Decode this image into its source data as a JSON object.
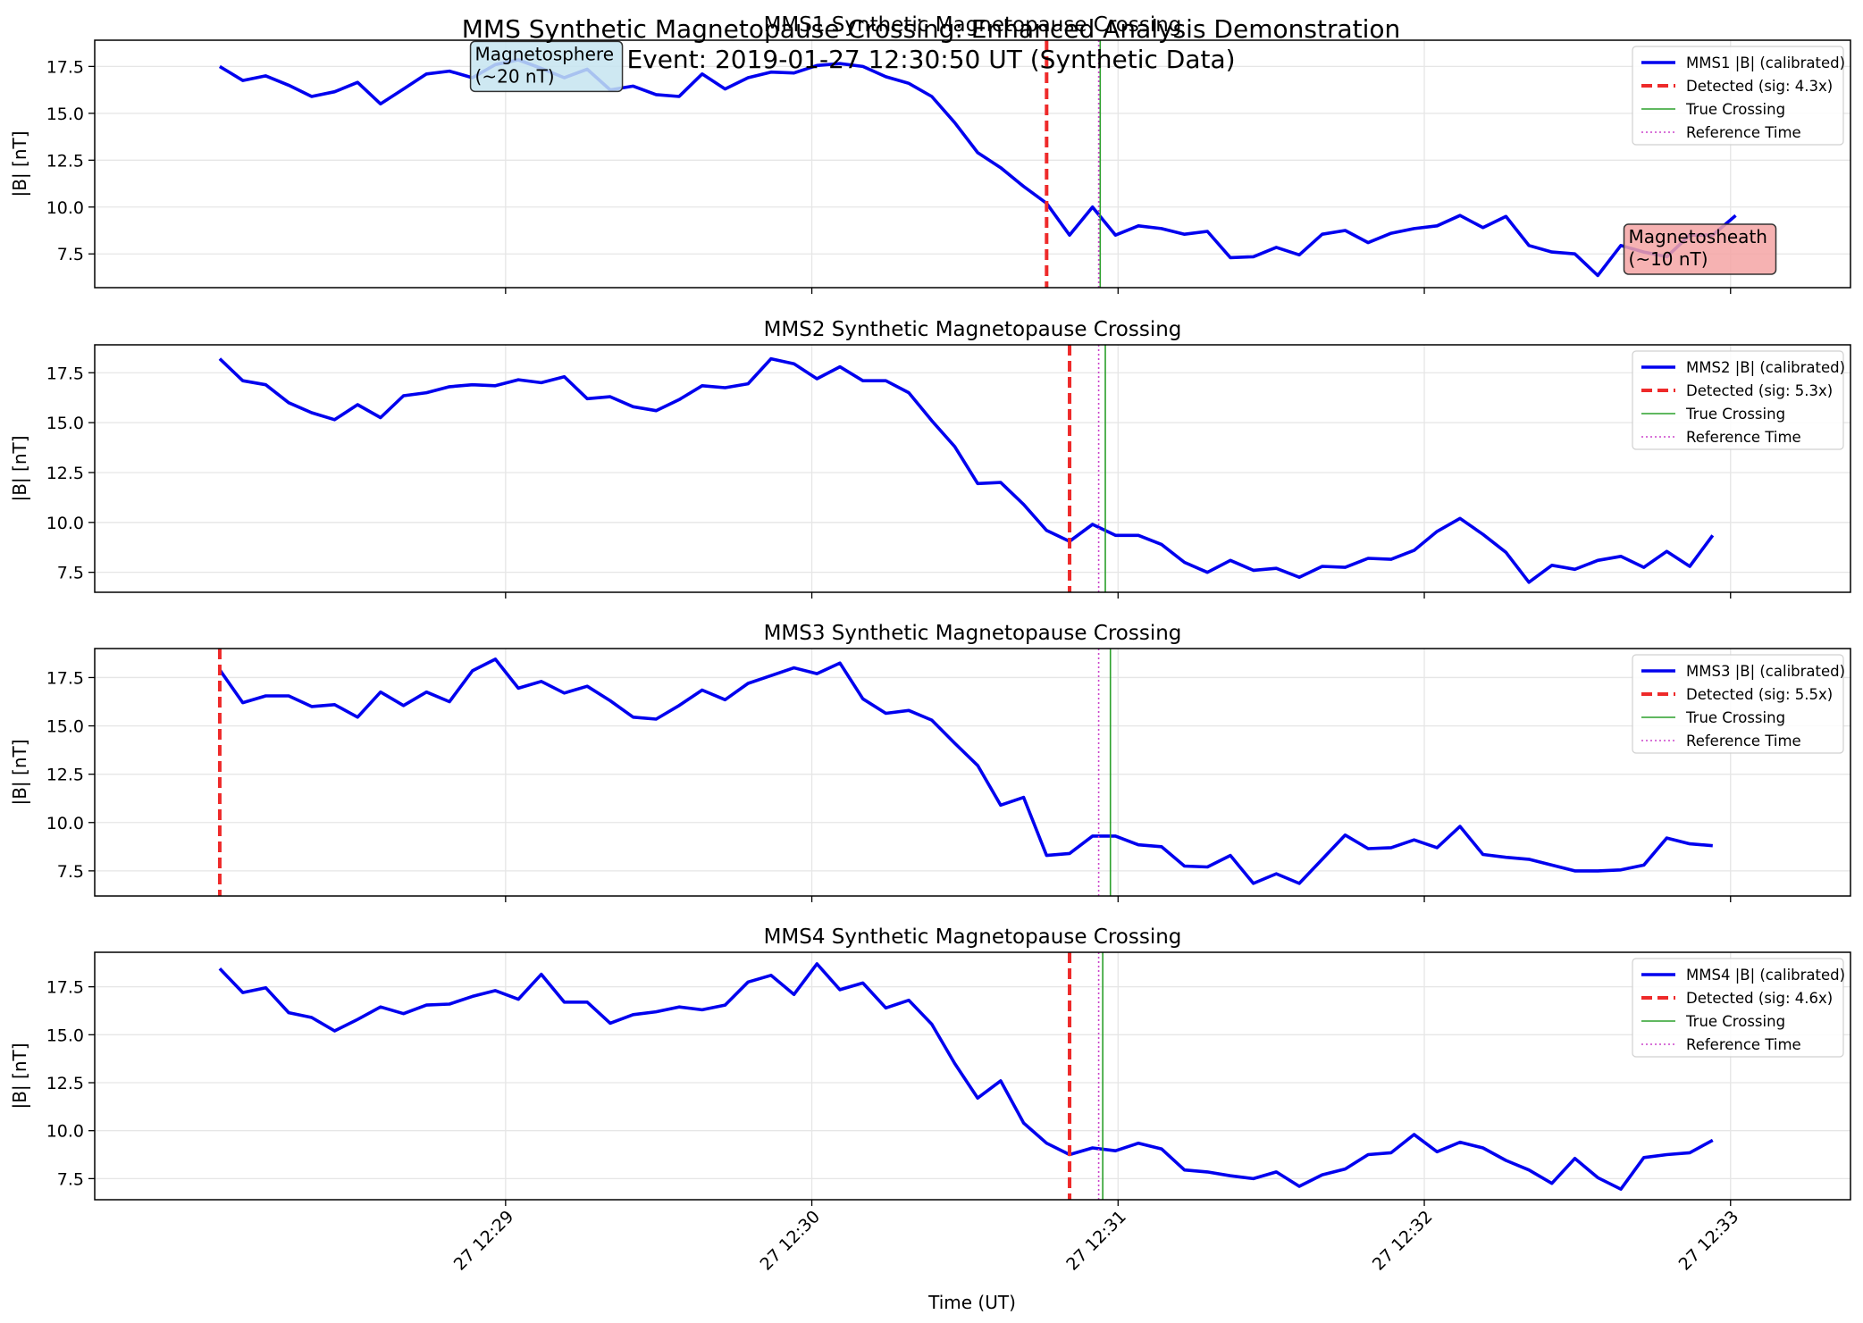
{
  "figure": {
    "suptitle_line1": "MMS Synthetic Magnetopause Crossing: Enhanced Analysis Demonstration",
    "suptitle_line2": "Event: 2019-01-27 12:30:50 UT (Synthetic Data)",
    "xlabel": "Time (UT)",
    "ylabel": "|B| [nT]",
    "colors": {
      "trace": "#0000ee",
      "detected": "#ee2a2a",
      "truth": "#2ca02c",
      "reference": "#cc44cc",
      "grid": "#e6e6e6"
    }
  },
  "chart_data": [
    {
      "type": "line",
      "title": "MMS1 Synthetic Magnetopause Crossing",
      "ylabel": "|B| [nT]",
      "x_unit": "seconds after 12:28:00 UT",
      "x_ticks": [
        60,
        120,
        180,
        240,
        300
      ],
      "x_tick_labels": [
        "27 12:29",
        "27 12:30",
        "27 12:31",
        "27 12:32",
        "27 12:33"
      ],
      "ylim": [
        5.7,
        18.9
      ],
      "y_ticks": [
        7.5,
        10.0,
        12.5,
        15.0,
        17.5
      ],
      "y_tick_labels": [
        "7.5",
        "10.0",
        "12.5",
        "15.0",
        "17.5"
      ],
      "grid": true,
      "legend_position": "top-right",
      "series": [
        {
          "name": "MMS1 |B| (calibrated)",
          "x_start": 4,
          "x_step": 4.5,
          "values": [
            17.5,
            16.75,
            17.0,
            16.5,
            15.9,
            16.15,
            16.65,
            15.5,
            16.3,
            17.1,
            17.25,
            16.9,
            17.6,
            17.85,
            17.4,
            16.9,
            17.35,
            16.25,
            16.45,
            16.0,
            15.9,
            17.1,
            16.3,
            16.9,
            17.2,
            17.15,
            17.55,
            17.65,
            17.5,
            16.95,
            16.6,
            15.9,
            14.5,
            12.9,
            12.1,
            11.1,
            10.2,
            8.5,
            10.0,
            8.5,
            9.0,
            8.85,
            8.55,
            8.7,
            7.3,
            7.35,
            7.85,
            7.45,
            8.55,
            8.75,
            8.1,
            8.6,
            8.85,
            9.0,
            9.55,
            8.9,
            9.5,
            7.95,
            7.6,
            7.5,
            6.35,
            7.95,
            7.6,
            7.35,
            8.5,
            8.5,
            9.55
          ]
        }
      ],
      "markers": [
        {
          "kind": "detected",
          "label": "Detected (sig: 4.3x)",
          "x": 166
        },
        {
          "kind": "truth",
          "label": "True Crossing",
          "x": 176.5
        },
        {
          "kind": "reference",
          "label": "Reference Time",
          "x": 176.2
        }
      ],
      "annotations": [
        {
          "text_line1": "Magnetosphere",
          "text_line2": "(~20 nT)",
          "x": 54,
          "y": 18.55,
          "face": "#c5e4f0"
        },
        {
          "text_line1": "Magnetosheath",
          "text_line2": "(~10 nT)",
          "x": 280,
          "y": 8.8,
          "face": "#f4a4a4"
        }
      ]
    },
    {
      "type": "line",
      "title": "MMS2 Synthetic Magnetopause Crossing",
      "ylabel": "|B| [nT]",
      "x_unit": "seconds after 12:28:00 UT",
      "x_ticks": [
        60,
        120,
        180,
        240,
        300
      ],
      "x_tick_labels": [
        "27 12:29",
        "27 12:30",
        "27 12:31",
        "27 12:32",
        "27 12:33"
      ],
      "ylim": [
        6.5,
        18.9
      ],
      "y_ticks": [
        7.5,
        10.0,
        12.5,
        15.0,
        17.5
      ],
      "y_tick_labels": [
        "7.5",
        "10.0",
        "12.5",
        "15.0",
        "17.5"
      ],
      "grid": true,
      "legend_position": "top-right",
      "series": [
        {
          "name": "MMS2 |B| (calibrated)",
          "x_start": 4,
          "x_step": 4.5,
          "values": [
            18.2,
            17.1,
            16.9,
            16.0,
            15.5,
            15.15,
            15.9,
            15.25,
            16.35,
            16.5,
            16.8,
            16.9,
            16.85,
            17.15,
            17.0,
            17.3,
            16.2,
            16.3,
            15.8,
            15.6,
            16.15,
            16.85,
            16.75,
            16.95,
            18.2,
            17.95,
            17.2,
            17.8,
            17.1,
            17.1,
            16.5,
            15.1,
            13.8,
            11.95,
            12.0,
            10.9,
            9.6,
            9.05,
            9.9,
            9.35,
            9.35,
            8.9,
            8.0,
            7.5,
            8.1,
            7.6,
            7.7,
            7.25,
            7.8,
            7.75,
            8.2,
            8.15,
            8.6,
            9.55,
            10.2,
            9.4,
            8.5,
            7.0,
            7.85,
            7.65,
            8.1,
            8.3,
            7.75,
            8.55,
            7.8,
            9.35
          ]
        }
      ],
      "markers": [
        {
          "kind": "detected",
          "label": "Detected (sig: 5.3x)",
          "x": 170.5
        },
        {
          "kind": "truth",
          "label": "True Crossing",
          "x": 177.5
        },
        {
          "kind": "reference",
          "label": "Reference Time",
          "x": 176.2
        }
      ],
      "annotations": []
    },
    {
      "type": "line",
      "title": "MMS3 Synthetic Magnetopause Crossing",
      "ylabel": "|B| [nT]",
      "x_unit": "seconds after 12:28:00 UT",
      "x_ticks": [
        60,
        120,
        180,
        240,
        300
      ],
      "x_tick_labels": [
        "27 12:29",
        "27 12:30",
        "27 12:31",
        "27 12:32",
        "27 12:33"
      ],
      "ylim": [
        6.2,
        19.0
      ],
      "y_ticks": [
        7.5,
        10.0,
        12.5,
        15.0,
        17.5
      ],
      "y_tick_labels": [
        "7.5",
        "10.0",
        "12.5",
        "15.0",
        "17.5"
      ],
      "grid": true,
      "legend_position": "top-right",
      "series": [
        {
          "name": "MMS3 |B| (calibrated)",
          "x_start": 4,
          "x_step": 4.5,
          "values": [
            17.9,
            16.2,
            16.55,
            16.55,
            16.0,
            16.1,
            15.45,
            16.75,
            16.05,
            16.75,
            16.25,
            17.85,
            18.45,
            16.95,
            17.3,
            16.7,
            17.05,
            16.3,
            15.45,
            15.35,
            16.05,
            16.85,
            16.35,
            17.2,
            17.6,
            18.0,
            17.7,
            18.25,
            16.4,
            15.65,
            15.8,
            15.3,
            14.1,
            12.95,
            10.9,
            11.3,
            8.3,
            8.4,
            9.3,
            9.3,
            8.85,
            8.75,
            7.75,
            7.7,
            8.3,
            6.85,
            7.35,
            6.85,
            8.1,
            9.35,
            8.65,
            8.7,
            9.1,
            8.7,
            9.8,
            8.35,
            8.2,
            8.1,
            7.8,
            7.5,
            7.5,
            7.55,
            7.8,
            9.2,
            8.9,
            8.8
          ]
        }
      ],
      "markers": [
        {
          "kind": "detected",
          "label": "Detected (sig: 5.5x)",
          "x": 4
        },
        {
          "kind": "truth",
          "label": "True Crossing",
          "x": 178.5
        },
        {
          "kind": "reference",
          "label": "Reference Time",
          "x": 176.2
        }
      ],
      "annotations": []
    },
    {
      "type": "line",
      "title": "MMS4 Synthetic Magnetopause Crossing",
      "ylabel": "|B| [nT]",
      "x_unit": "seconds after 12:28:00 UT",
      "x_ticks": [
        60,
        120,
        180,
        240,
        300
      ],
      "x_tick_labels": [
        "27 12:29",
        "27 12:30",
        "27 12:31",
        "27 12:32",
        "27 12:33"
      ],
      "ylim": [
        6.4,
        19.3
      ],
      "y_ticks": [
        7.5,
        10.0,
        12.5,
        15.0,
        17.5
      ],
      "y_tick_labels": [
        "7.5",
        "10.0",
        "12.5",
        "15.0",
        "17.5"
      ],
      "grid": true,
      "legend_position": "top-right",
      "series": [
        {
          "name": "MMS4 |B| (calibrated)",
          "x_start": 4,
          "x_step": 4.5,
          "values": [
            18.45,
            17.2,
            17.45,
            16.15,
            15.9,
            15.2,
            15.8,
            16.45,
            16.1,
            16.55,
            16.6,
            17.0,
            17.3,
            16.85,
            18.15,
            16.7,
            16.7,
            15.6,
            16.05,
            16.2,
            16.45,
            16.3,
            16.55,
            17.75,
            18.1,
            17.1,
            18.7,
            17.35,
            17.7,
            16.4,
            16.8,
            15.55,
            13.5,
            11.7,
            12.6,
            10.4,
            9.35,
            8.75,
            9.1,
            8.95,
            9.35,
            9.05,
            7.95,
            7.85,
            7.65,
            7.5,
            7.85,
            7.1,
            7.7,
            8.0,
            8.75,
            8.85,
            9.8,
            8.9,
            9.4,
            9.1,
            8.45,
            7.95,
            7.25,
            8.55,
            7.55,
            6.95,
            8.6,
            8.75,
            8.85,
            9.5
          ]
        }
      ],
      "markers": [
        {
          "kind": "detected",
          "label": "Detected (sig: 4.6x)",
          "x": 170.5
        },
        {
          "kind": "truth",
          "label": "True Crossing",
          "x": 177
        },
        {
          "kind": "reference",
          "label": "Reference Time",
          "x": 176.2
        }
      ],
      "annotations": []
    }
  ]
}
